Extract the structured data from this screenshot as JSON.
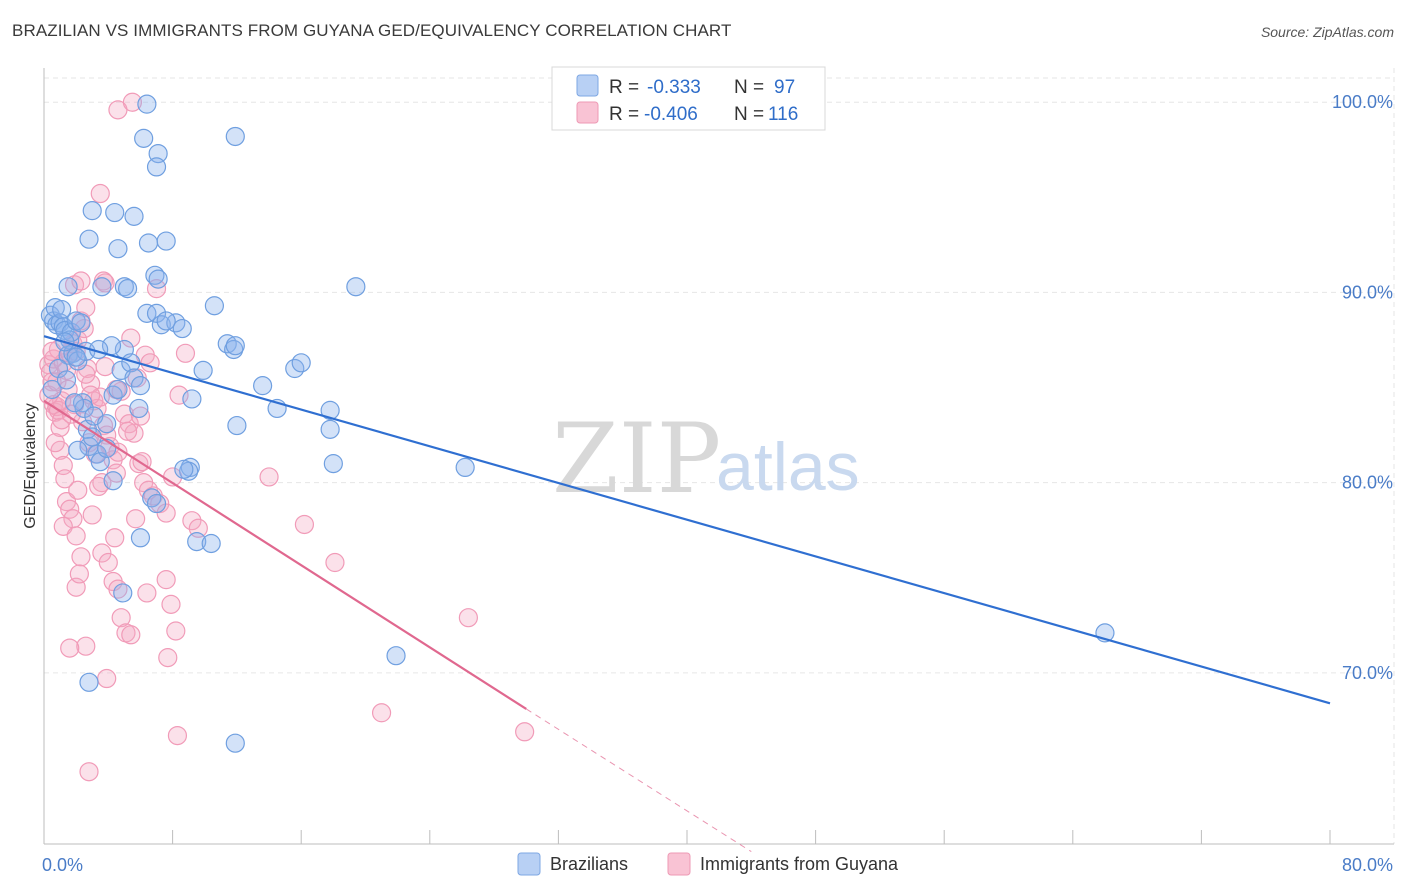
{
  "title": "BRAZILIAN VS IMMIGRANTS FROM GUYANA GED/EQUIVALENCY CORRELATION CHART",
  "source": "Source: ZipAtlas.com",
  "colors": {
    "blue": "#6f9fe0",
    "blue_line": "#2f6fd1",
    "pink": "#f19bb8",
    "pink_line": "#e0688f",
    "grid": "#e6e6e6",
    "axis": "#bdbdbd",
    "tick_text": "#4a7cc7"
  },
  "watermark": {
    "zip": "ZIP",
    "atlas": "atlas"
  },
  "legend": {
    "rows": [
      {
        "r_label": "R =",
        "r_value": "-0.333",
        "n_label": "N =",
        "n_value": "97",
        "color": "blue"
      },
      {
        "r_label": "R =",
        "r_value": "-0.406",
        "n_label": "N =",
        "n_value": "116",
        "color": "pink"
      }
    ]
  },
  "bottom_legend": [
    "Brazilians",
    "Immigrants from Guyana"
  ],
  "chart_data": {
    "type": "scatter",
    "title": "BRAZILIAN VS IMMIGRANTS FROM GUYANA GED/EQUIVALENCY CORRELATION CHART",
    "xlabel": "",
    "ylabel": "GED/Equivalency",
    "xlim": [
      0,
      80
    ],
    "ylim": [
      61,
      101.8
    ],
    "x_tick_labels": [
      "0.0%",
      "80.0%"
    ],
    "y_ticks": [
      70,
      80,
      90,
      100
    ],
    "y_tick_labels": [
      "70.0%",
      "80.0%",
      "90.0%",
      "100.0%"
    ],
    "grid": true,
    "legend_position": "top-center",
    "series": [
      {
        "name": "Brazilians",
        "color": "blue",
        "trend": {
          "x": [
            0,
            80
          ],
          "y": [
            87.7,
            68.4
          ]
        },
        "points": [
          [
            0.4,
            88.8
          ],
          [
            0.6,
            88.5
          ],
          [
            0.7,
            89.2
          ],
          [
            0.8,
            88.3
          ],
          [
            1.0,
            88.4
          ],
          [
            1.1,
            89.1
          ],
          [
            1.2,
            88.2
          ],
          [
            1.3,
            88.0
          ],
          [
            1.5,
            86.7
          ],
          [
            1.6,
            87.5
          ],
          [
            1.7,
            87.9
          ],
          [
            1.8,
            86.8
          ],
          [
            2.0,
            88.5
          ],
          [
            2.1,
            86.4
          ],
          [
            2.3,
            88.4
          ],
          [
            0.5,
            84.9
          ],
          [
            0.9,
            86.0
          ],
          [
            1.4,
            85.4
          ],
          [
            2.4,
            84.2
          ],
          [
            2.5,
            83.9
          ],
          [
            2.7,
            82.8
          ],
          [
            2.8,
            81.9
          ],
          [
            3.0,
            82.4
          ],
          [
            3.3,
            81.5
          ],
          [
            3.5,
            81.1
          ],
          [
            3.9,
            81.8
          ],
          [
            4.3,
            84.6
          ],
          [
            4.6,
            84.9
          ],
          [
            5.0,
            87.0
          ],
          [
            4.2,
            87.2
          ],
          [
            4.8,
            85.9
          ],
          [
            5.4,
            86.3
          ],
          [
            5.6,
            85.5
          ],
          [
            6.0,
            85.1
          ],
          [
            5.9,
            83.9
          ],
          [
            6.4,
            88.9
          ],
          [
            7.0,
            88.9
          ],
          [
            7.3,
            88.3
          ],
          [
            8.2,
            88.4
          ],
          [
            8.6,
            88.1
          ],
          [
            7.6,
            88.5
          ],
          [
            6.9,
            90.9
          ],
          [
            7.1,
            90.7
          ],
          [
            5.0,
            90.3
          ],
          [
            5.2,
            90.2
          ],
          [
            3.6,
            90.3
          ],
          [
            1.5,
            90.3
          ],
          [
            2.8,
            92.8
          ],
          [
            4.6,
            92.3
          ],
          [
            6.5,
            92.6
          ],
          [
            7.6,
            92.7
          ],
          [
            3.0,
            94.3
          ],
          [
            4.4,
            94.2
          ],
          [
            5.6,
            94.0
          ],
          [
            6.2,
            98.1
          ],
          [
            7.1,
            97.3
          ],
          [
            7.0,
            96.6
          ],
          [
            6.4,
            99.9
          ],
          [
            11.9,
            98.2
          ],
          [
            10.6,
            89.3
          ],
          [
            11.4,
            87.3
          ],
          [
            11.8,
            87.0
          ],
          [
            11.9,
            87.2
          ],
          [
            9.9,
            85.9
          ],
          [
            9.2,
            84.4
          ],
          [
            12.0,
            83.0
          ],
          [
            13.6,
            85.1
          ],
          [
            14.5,
            83.9
          ],
          [
            15.6,
            86.0
          ],
          [
            16.0,
            86.3
          ],
          [
            17.8,
            83.8
          ],
          [
            17.8,
            82.8
          ],
          [
            18.0,
            81.0
          ],
          [
            19.4,
            90.3
          ],
          [
            9.1,
            80.8
          ],
          [
            9.0,
            80.6
          ],
          [
            8.7,
            80.7
          ],
          [
            6.7,
            79.2
          ],
          [
            7.0,
            78.9
          ],
          [
            6.0,
            77.1
          ],
          [
            9.5,
            76.9
          ],
          [
            10.4,
            76.8
          ],
          [
            4.9,
            74.2
          ],
          [
            2.8,
            69.5
          ],
          [
            11.9,
            66.3
          ],
          [
            21.9,
            70.9
          ],
          [
            26.2,
            80.8
          ],
          [
            66.0,
            72.1
          ],
          [
            2.6,
            86.9
          ],
          [
            3.4,
            87.0
          ],
          [
            1.3,
            87.4
          ],
          [
            2.0,
            86.6
          ],
          [
            3.1,
            83.5
          ],
          [
            2.1,
            81.7
          ],
          [
            4.3,
            80.1
          ],
          [
            3.9,
            83.1
          ],
          [
            1.9,
            84.2
          ]
        ]
      },
      {
        "name": "Immigrants from Guyana",
        "color": "pink",
        "trend": {
          "x": [
            0,
            30
          ],
          "y": [
            84.3,
            68.1
          ]
        },
        "trend_dashed": {
          "x": [
            30,
            44
          ],
          "y": [
            68.1,
            60.6
          ]
        },
        "points": [
          [
            0.3,
            86.2
          ],
          [
            0.4,
            85.8
          ],
          [
            0.5,
            85.3
          ],
          [
            0.6,
            84.1
          ],
          [
            0.7,
            83.7
          ],
          [
            0.8,
            84.0
          ],
          [
            0.9,
            83.8
          ],
          [
            1.0,
            82.9
          ],
          [
            1.1,
            84.3
          ],
          [
            0.3,
            84.6
          ],
          [
            0.6,
            86.5
          ],
          [
            0.9,
            87.0
          ],
          [
            1.2,
            86.3
          ],
          [
            1.4,
            85.9
          ],
          [
            1.6,
            86.8
          ],
          [
            1.8,
            87.3
          ],
          [
            2.0,
            86.9
          ],
          [
            2.1,
            87.5
          ],
          [
            2.3,
            88.5
          ],
          [
            2.5,
            88.1
          ],
          [
            2.7,
            86.0
          ],
          [
            2.9,
            85.2
          ],
          [
            3.1,
            84.3
          ],
          [
            3.3,
            83.9
          ],
          [
            3.5,
            84.5
          ],
          [
            3.7,
            83.0
          ],
          [
            3.9,
            82.5
          ],
          [
            4.1,
            81.9
          ],
          [
            4.3,
            81.2
          ],
          [
            4.5,
            80.5
          ],
          [
            4.8,
            84.8
          ],
          [
            5.0,
            83.6
          ],
          [
            5.3,
            83.1
          ],
          [
            5.6,
            82.6
          ],
          [
            5.9,
            81.0
          ],
          [
            6.2,
            80.0
          ],
          [
            6.5,
            79.6
          ],
          [
            6.8,
            79.3
          ],
          [
            7.2,
            78.9
          ],
          [
            7.6,
            78.4
          ],
          [
            8.0,
            80.3
          ],
          [
            8.4,
            84.6
          ],
          [
            8.8,
            86.8
          ],
          [
            9.2,
            78.0
          ],
          [
            9.6,
            77.6
          ],
          [
            1.0,
            81.7
          ],
          [
            1.2,
            80.9
          ],
          [
            1.4,
            79.0
          ],
          [
            1.6,
            78.6
          ],
          [
            1.8,
            78.1
          ],
          [
            1.2,
            77.7
          ],
          [
            2.0,
            77.2
          ],
          [
            2.3,
            76.1
          ],
          [
            2.0,
            74.5
          ],
          [
            2.6,
            71.4
          ],
          [
            1.6,
            71.3
          ],
          [
            3.6,
            76.3
          ],
          [
            4.0,
            75.8
          ],
          [
            4.3,
            74.8
          ],
          [
            4.6,
            74.4
          ],
          [
            4.8,
            72.9
          ],
          [
            5.1,
            72.1
          ],
          [
            5.4,
            72.0
          ],
          [
            6.4,
            74.2
          ],
          [
            7.6,
            74.9
          ],
          [
            7.9,
            73.6
          ],
          [
            8.2,
            72.2
          ],
          [
            7.7,
            70.8
          ],
          [
            3.9,
            69.7
          ],
          [
            2.8,
            64.8
          ],
          [
            8.3,
            66.7
          ],
          [
            4.6,
            99.6
          ],
          [
            5.5,
            100.0
          ],
          [
            3.5,
            95.2
          ],
          [
            3.7,
            90.6
          ],
          [
            1.9,
            90.4
          ],
          [
            2.3,
            90.6
          ],
          [
            7.0,
            90.2
          ],
          [
            3.8,
            90.5
          ],
          [
            2.6,
            89.2
          ],
          [
            5.4,
            87.6
          ],
          [
            6.3,
            86.7
          ],
          [
            6.6,
            86.3
          ],
          [
            5.8,
            85.5
          ],
          [
            4.5,
            84.9
          ],
          [
            2.9,
            84.6
          ],
          [
            6.0,
            83.5
          ],
          [
            5.2,
            82.7
          ],
          [
            4.6,
            81.6
          ],
          [
            6.1,
            81.1
          ],
          [
            3.6,
            80.0
          ],
          [
            2.1,
            79.6
          ],
          [
            1.3,
            80.2
          ],
          [
            14.0,
            80.3
          ],
          [
            16.2,
            77.8
          ],
          [
            18.1,
            75.8
          ],
          [
            21.0,
            67.9
          ],
          [
            26.4,
            72.9
          ],
          [
            29.9,
            66.9
          ],
          [
            0.5,
            86.9
          ],
          [
            0.8,
            85.3
          ],
          [
            1.5,
            84.9
          ],
          [
            1.9,
            84.1
          ],
          [
            2.4,
            83.2
          ],
          [
            2.8,
            82.1
          ],
          [
            3.2,
            81.5
          ],
          [
            3.4,
            79.8
          ],
          [
            3.0,
            78.3
          ],
          [
            2.2,
            75.2
          ],
          [
            4.4,
            77.1
          ],
          [
            5.7,
            78.1
          ],
          [
            1.1,
            83.3
          ],
          [
            0.7,
            82.1
          ],
          [
            1.7,
            83.6
          ],
          [
            2.6,
            85.7
          ],
          [
            3.8,
            86.1
          ]
        ]
      }
    ]
  }
}
